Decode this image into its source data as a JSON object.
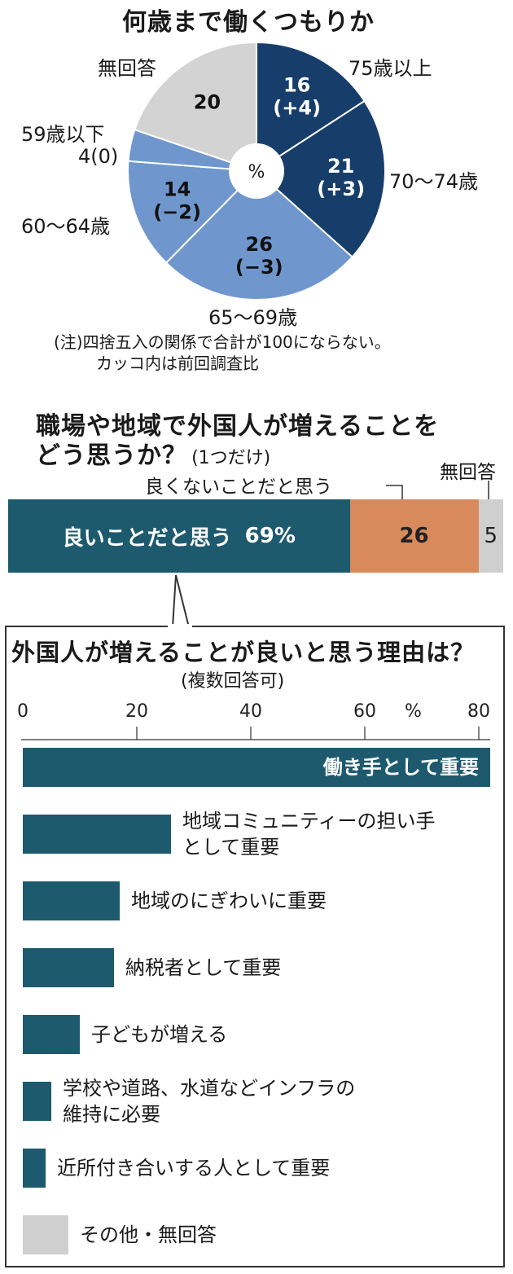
{
  "chart_data": [
    {
      "type": "pie",
      "title": "何歳まで働くつもりか",
      "center_label": "%",
      "slices": [
        {
          "name": "75歳以上",
          "value": 16,
          "change": "(+4)",
          "color": "#173e6b"
        },
        {
          "name": "70〜74歳",
          "value": 21,
          "change": "(+3)",
          "color": "#173e6b"
        },
        {
          "name": "65〜69歳",
          "value": 26,
          "change": "(−3)",
          "color": "#6f97cd"
        },
        {
          "name": "60〜64歳",
          "value": 14,
          "change": "(−2)",
          "color": "#6f97cd"
        },
        {
          "name": "59歳以下",
          "value": 4,
          "change": "(0)",
          "color": "#6f97cd"
        },
        {
          "name": "無回答",
          "value": 20,
          "change": "",
          "color": "#d3d3d3"
        }
      ],
      "note_line1": "(注)四捨五入の関係で合計が100にならない。",
      "note_line2": "カッコ内は前回調査比"
    },
    {
      "type": "bar",
      "stacked": true,
      "orientation": "horizontal",
      "title_line1": "職場や地域で外国人が増えることを",
      "title_line2": "どう思うか？",
      "title_suffix": "(1つだけ)",
      "segments": [
        {
          "name": "良いことだと思う",
          "value": 69,
          "label": "69%",
          "color": "#1e5a6e"
        },
        {
          "name": "良くないことだと思う",
          "value": 26,
          "label": "26",
          "color": "#d98a5c"
        },
        {
          "name": "無回答",
          "value": 5,
          "label": "5",
          "color": "#cfcfcf"
        }
      ]
    },
    {
      "type": "bar",
      "orientation": "horizontal",
      "title": "外国人が増えることが良いと思う理由は？",
      "subtitle": "(複数回答可)",
      "xlim": [
        0,
        82
      ],
      "xticks": [
        0,
        20,
        40,
        60,
        80
      ],
      "unit": "%",
      "categories": [
        "働き手として重要",
        [
          "地域コミュニティーの担い手",
          "として重要"
        ],
        "地域のにぎわいに重要",
        "納税者として重要",
        "子どもが増える",
        [
          "学校や道路、水道などインフラの",
          "維持に必要"
        ],
        "近所付き合いする人として重要",
        "その他・無回答"
      ],
      "values": [
        82,
        26,
        17,
        16,
        10,
        5,
        4,
        8
      ],
      "colors": [
        "#1e5a6e",
        "#1e5a6e",
        "#1e5a6e",
        "#1e5a6e",
        "#1e5a6e",
        "#1e5a6e",
        "#1e5a6e",
        "#cfcfcf"
      ]
    }
  ]
}
